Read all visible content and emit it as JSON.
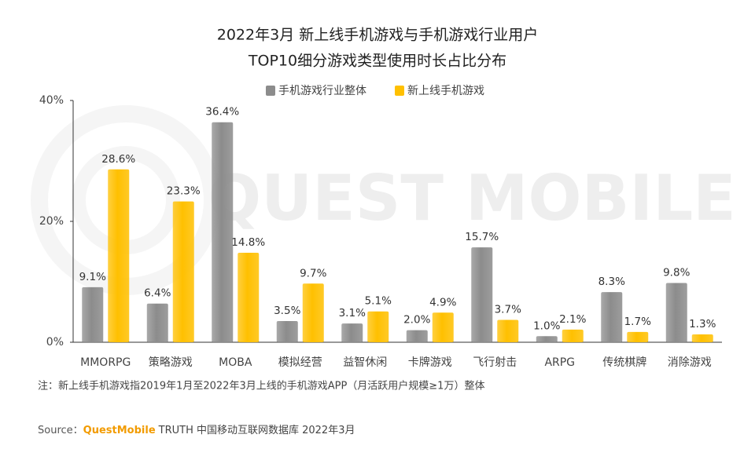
{
  "chart_data": {
    "type": "bar",
    "title": [
      "2022年3月 新上线手机游戏与手机游戏行业用户",
      "TOP10细分游戏类型使用时长占比分布"
    ],
    "watermark": "QUEST MOBILE",
    "categories": [
      "MMORPG",
      "策略游戏",
      "MOBA",
      "模拟经营",
      "益智休闲",
      "卡牌游戏",
      "飞行射击",
      "ARPG",
      "传统棋牌",
      "消除游戏"
    ],
    "series": [
      {
        "name": "手机游戏行业整体",
        "color": "#8c8c8c",
        "values": [
          9.1,
          6.4,
          36.4,
          3.5,
          3.1,
          2.0,
          15.7,
          1.0,
          8.3,
          9.8
        ],
        "value_labels": [
          "9.1%",
          "6.4%",
          "36.4%",
          "3.5%",
          "3.1%",
          "2.0%",
          "15.7%",
          "1.0%",
          "8.3%",
          "9.8%"
        ]
      },
      {
        "name": "新上线手机游戏",
        "color": "#ffc000",
        "values": [
          28.6,
          23.3,
          14.8,
          9.7,
          5.1,
          4.9,
          3.7,
          2.1,
          1.7,
          1.3
        ],
        "value_labels": [
          "28.6%",
          "23.3%",
          "14.8%",
          "9.7%",
          "5.1%",
          "4.9%",
          "3.7%",
          "2.1%",
          "1.7%",
          "1.3%"
        ]
      }
    ],
    "ylim": [
      0,
      40
    ],
    "yticks": [
      {
        "value": 0,
        "label": "0%"
      },
      {
        "value": 20,
        "label": "20%"
      },
      {
        "value": 40,
        "label": "40%"
      }
    ],
    "grid": false,
    "note": "注：新上线手机游戏指2019年1月至2022年3月上线的手机游戏APP（月活跃用户规模≥1万）整体",
    "source": {
      "label": "Source：",
      "brand": "QuestMobile",
      "text": "TRUTH 中国移动互联网数据库 2022年3月"
    }
  }
}
